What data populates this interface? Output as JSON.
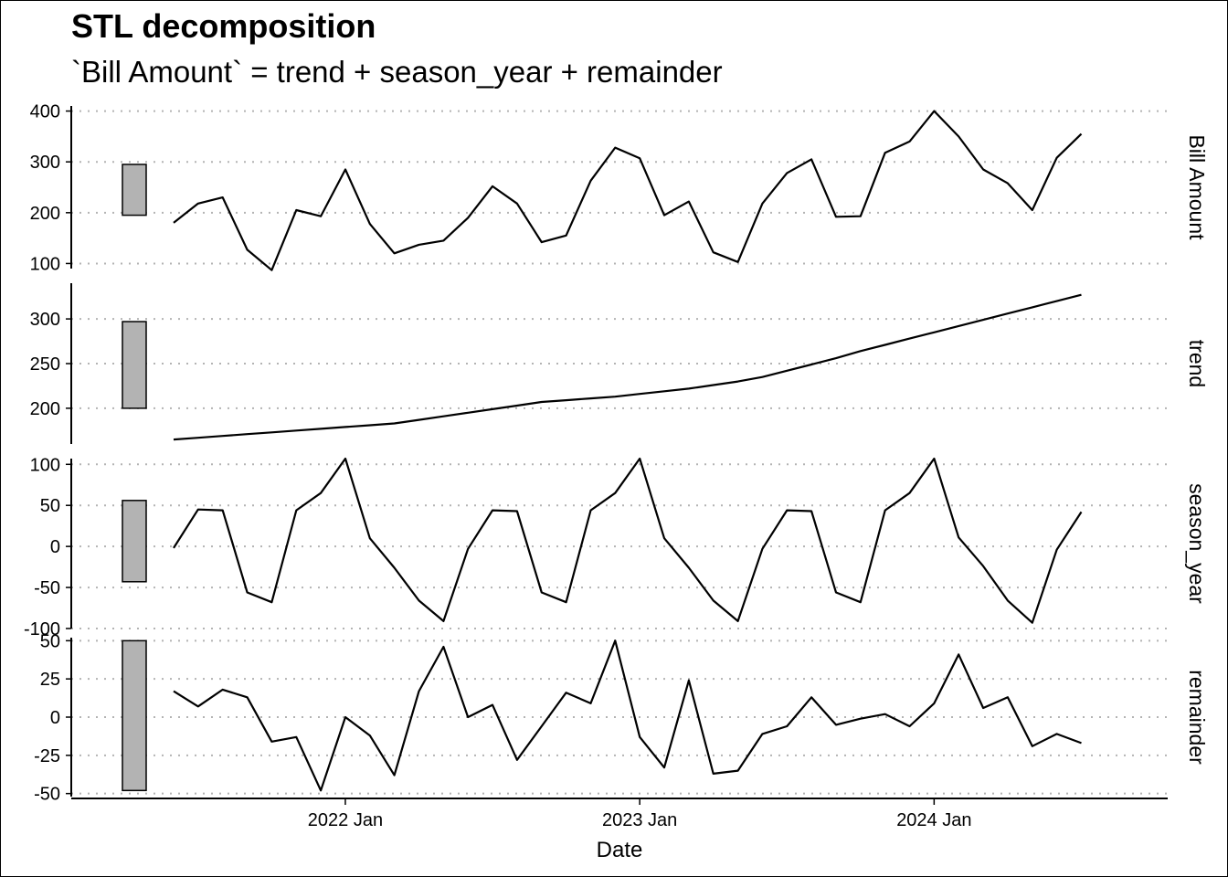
{
  "chart_data": {
    "type": "line",
    "title": "STL decomposition",
    "subtitle": "`Bill Amount` = trend + season_year + remainder",
    "xlabel": "Date",
    "x_ticks": [
      "2022 Jan",
      "2023 Jan",
      "2024 Jan"
    ],
    "x_start": "2021-06",
    "grid": "dotted horizontal",
    "panels": [
      {
        "name": "Bill Amount",
        "ylim": [
          90,
          410
        ],
        "y_ticks": [
          100,
          200,
          300,
          400
        ],
        "bar_range": [
          195,
          295
        ],
        "values": [
          180,
          218,
          230,
          127,
          87,
          205,
          193,
          285,
          178,
          120,
          137,
          145,
          190,
          252,
          218,
          142,
          155,
          263,
          328,
          307,
          195,
          222,
          122,
          103,
          218,
          278,
          305,
          192,
          193,
          318,
          340,
          400,
          350,
          285,
          258,
          205,
          308,
          355
        ]
      },
      {
        "name": "trend",
        "ylim": [
          160,
          340
        ],
        "y_ticks": [
          200,
          250,
          300
        ],
        "bar_range": [
          200,
          297
        ],
        "values": [
          165,
          167,
          169,
          171,
          173,
          175,
          177,
          179,
          181,
          183,
          187,
          191,
          195,
          199,
          203,
          207,
          209,
          211,
          213,
          216,
          219,
          222,
          226,
          230,
          235,
          242,
          249,
          256,
          264,
          271,
          278,
          285,
          292,
          299,
          306,
          313,
          320,
          327
        ]
      },
      {
        "name": "season_year",
        "ylim": [
          -100,
          107
        ],
        "y_ticks": [
          -100,
          -50,
          0,
          50,
          100
        ],
        "bar_range": [
          -43,
          56
        ],
        "values": [
          -2,
          45,
          44,
          -56,
          -68,
          44,
          65,
          107,
          10,
          -26,
          -66,
          -91,
          -3,
          44,
          43,
          -56,
          -68,
          44,
          65,
          107,
          10,
          -26,
          -66,
          -91,
          -3,
          44,
          43,
          -56,
          -68,
          44,
          65,
          107,
          11,
          -24,
          -66,
          -93,
          -4,
          42
        ]
      },
      {
        "name": "remainder",
        "ylim": [
          -52,
          52
        ],
        "y_ticks": [
          -50,
          -25,
          0,
          25,
          50
        ],
        "bar_range": [
          -48,
          50
        ],
        "values": [
          17,
          7,
          18,
          13,
          -16,
          -13,
          -48,
          0,
          -12,
          -38,
          17,
          46,
          0,
          8,
          -28,
          -6,
          16,
          9,
          50,
          -13,
          -33,
          24,
          -37,
          -35,
          -11,
          -6,
          13,
          -5,
          -1,
          2,
          -6,
          9,
          41,
          6,
          13,
          -19,
          -11,
          -17
        ]
      }
    ]
  }
}
